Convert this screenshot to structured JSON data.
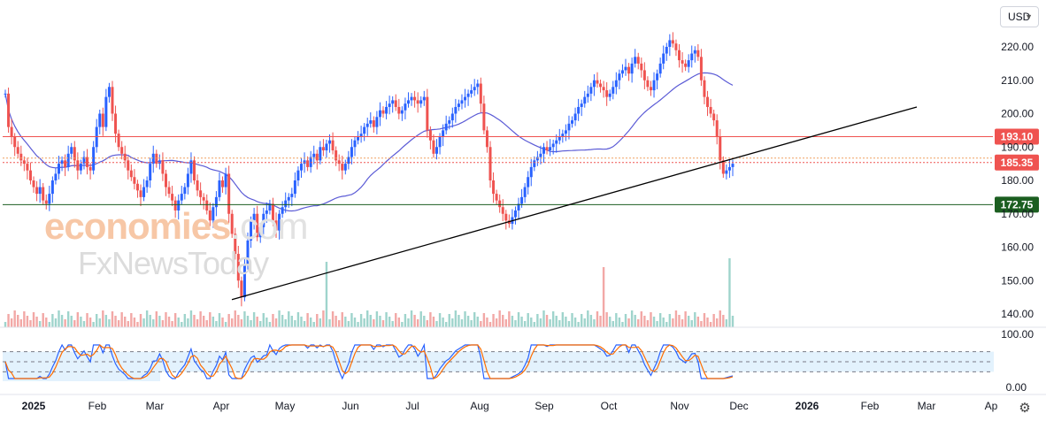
{
  "toolbar": {
    "currency": "USD"
  },
  "watermark": {
    "line1_brand": "economies",
    "line1_tail": ".com",
    "line2": "FxNewsToday"
  },
  "chart_data": {
    "type": "candlestick",
    "price_axis": {
      "min": 140,
      "max": 220,
      "ticks": [
        "220.00",
        "210.00",
        "200.00",
        "190.00",
        "180.00",
        "170.00",
        "160.00",
        "150.00",
        "140.00"
      ]
    },
    "time_axis": {
      "labels": [
        "2025",
        "Feb",
        "Mar",
        "Apr",
        "May",
        "Jun",
        "Jul",
        "Aug",
        "Sep",
        "Oct",
        "Nov",
        "Dec",
        "2026",
        "Feb",
        "Mar",
        "Ap"
      ]
    },
    "horizontal_levels": [
      {
        "value": 193.1,
        "label": "193.10",
        "color": "#ef5350"
      },
      {
        "value": 185.35,
        "label": "185.35",
        "color": "#ef5350"
      },
      {
        "value": 172.75,
        "label": "172.75",
        "color": "#1b5e20"
      }
    ],
    "trendline": {
      "from": {
        "date": "Apr 7",
        "price": 144.5
      },
      "to": {
        "date": "Feb 2026",
        "price": 202
      }
    },
    "moving_average_color": "#5b5bd6",
    "colors": {
      "up": "#26a69a",
      "down": "#ef5350",
      "up_candle": "#2962ff",
      "down_candle": "#ef5350"
    },
    "prices": [
      {
        "d": "Jan",
        "v": [
          206,
          196,
          193,
          190,
          188,
          186,
          185,
          183,
          180,
          178,
          176,
          178,
          174,
          173,
          176,
          180,
          182,
          185,
          186,
          184,
          188,
          190,
          186,
          183,
          185,
          187,
          184,
          183
        ]
      },
      {
        "d": "Feb",
        "v": [
          190,
          196,
          200,
          196,
          205,
          208,
          200,
          194,
          190,
          188,
          186,
          183,
          181,
          179,
          177,
          175,
          178,
          180,
          185,
          188,
          185,
          186
        ]
      },
      {
        "d": "Mar",
        "v": [
          182,
          178,
          176,
          174,
          171,
          174,
          176,
          178,
          182,
          186,
          180,
          177,
          175,
          174,
          171,
          168,
          172,
          175,
          180,
          178,
          182
        ]
      },
      {
        "d": "Apr",
        "v": [
          170,
          164,
          158,
          150,
          145,
          155,
          162,
          168,
          170,
          163,
          166,
          170,
          171,
          173,
          168,
          165,
          170,
          172,
          174,
          175,
          176
        ]
      },
      {
        "d": "May",
        "v": [
          180,
          183,
          185,
          186,
          184,
          187,
          188,
          186,
          190,
          189,
          191,
          192,
          189,
          186,
          185,
          183,
          185,
          187,
          190,
          192,
          193
        ]
      },
      {
        "d": "Jun",
        "v": [
          194,
          196,
          197,
          198,
          196,
          199,
          201,
          200,
          202,
          203,
          204,
          202,
          200,
          201,
          203,
          204,
          205,
          204,
          203,
          204,
          205
        ]
      },
      {
        "d": "Jul",
        "v": [
          195,
          192,
          188,
          190,
          193,
          195,
          197,
          198,
          200,
          202,
          203,
          204,
          205,
          206,
          207,
          208,
          209,
          203,
          195,
          190,
          180,
          176,
          174
        ]
      },
      {
        "d": "Aug",
        "v": [
          172,
          170,
          168,
          167,
          169,
          171,
          173,
          175,
          178,
          181,
          184,
          186,
          187,
          188,
          190,
          189,
          190,
          191,
          192,
          193,
          194
        ]
      },
      {
        "d": "Sep",
        "v": [
          195,
          197,
          198,
          200,
          202,
          203,
          205,
          206,
          208,
          210,
          209,
          208,
          207,
          205,
          206,
          208,
          210,
          212,
          213,
          214,
          212
        ]
      },
      {
        "d": "Oct",
        "v": [
          215,
          217,
          215,
          213,
          210,
          208,
          207,
          210,
          212,
          215,
          218,
          220,
          222,
          221,
          219,
          216,
          215,
          214,
          216,
          218,
          219,
          217,
          210
        ]
      },
      {
        "d": "Nov",
        "v": [
          205,
          202,
          200,
          198,
          193,
          186,
          182,
          183,
          184,
          185
        ]
      }
    ],
    "volume_scale": "relative",
    "stochastic": {
      "axis": {
        "min": 0,
        "max": 100,
        "ticks": [
          "100.00",
          "0.00"
        ]
      },
      "bands": [
        80,
        50,
        20
      ],
      "k_color": "#2962ff",
      "d_color": "#ff6d00"
    }
  }
}
